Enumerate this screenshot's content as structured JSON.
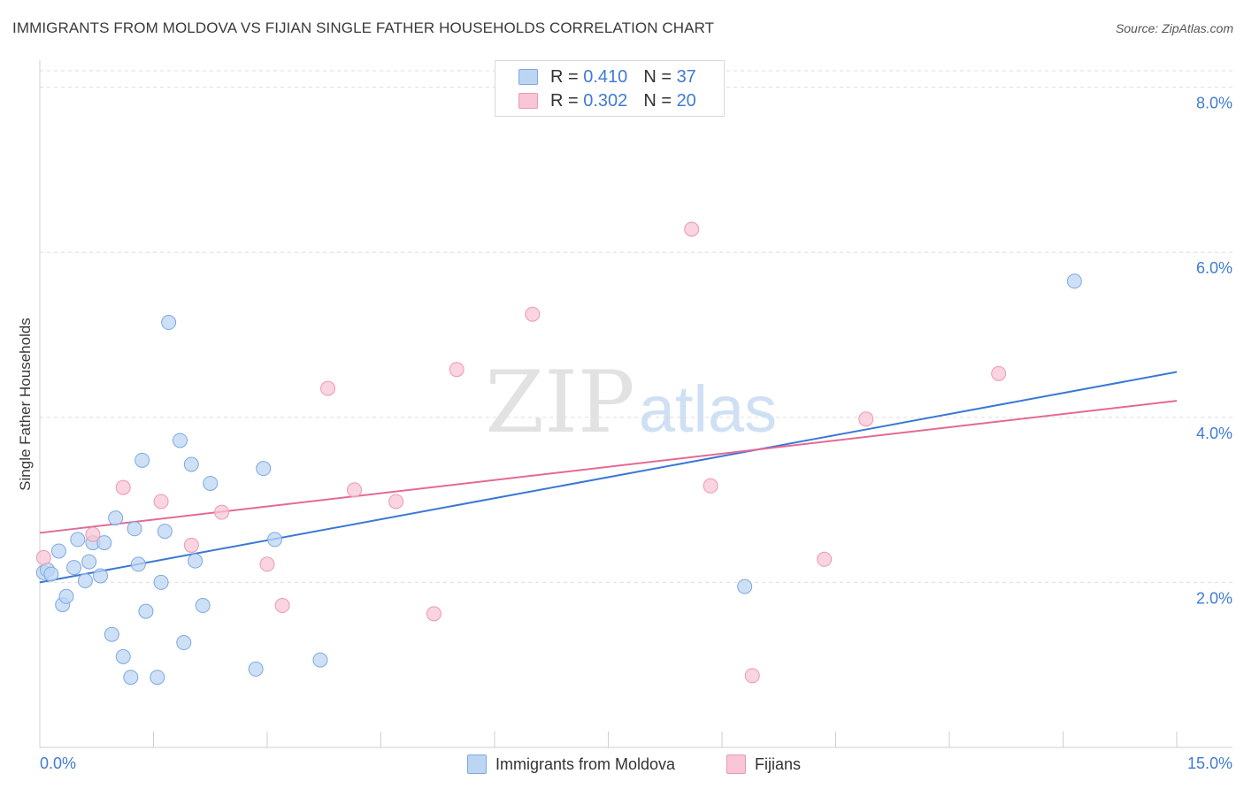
{
  "header": {
    "title": "IMMIGRANTS FROM MOLDOVA VS FIJIAN SINGLE FATHER HOUSEHOLDS CORRELATION CHART",
    "source": "Source: ZipAtlas.com"
  },
  "legend_top": {
    "rows": [
      {
        "r_label": "R =",
        "r_value": "0.410",
        "n_label": "N =",
        "n_value": "37"
      },
      {
        "r_label": "R =",
        "r_value": "0.302",
        "n_label": "N =",
        "n_value": "20"
      }
    ]
  },
  "legend_bottom": {
    "items": [
      "Immigrants from Moldova",
      "Fijians"
    ]
  },
  "watermark": {
    "zip": "ZIP",
    "atlas": "atlas"
  },
  "colors": {
    "blue_fill": "#bcd5f3",
    "blue_stroke": "#7fa8e0",
    "blue_line": "#3a78d4",
    "pink_fill": "#f8c6d6",
    "pink_stroke": "#ec98b4",
    "pink_line": "#e36a95",
    "axis_text": "#3f7bd6"
  },
  "chart_data": {
    "type": "scatter",
    "title": "IMMIGRANTS FROM MOLDOVA VS FIJIAN SINGLE FATHER HOUSEHOLDS CORRELATION CHART",
    "xlabel": "",
    "ylabel": "Single Father Households",
    "xlim": [
      0,
      15
    ],
    "ylim": [
      0,
      8.2
    ],
    "x_tick_labels": [
      "0.0%",
      "15.0%"
    ],
    "y_ticks": [
      2,
      4,
      6,
      8
    ],
    "y_tick_labels": [
      "2.0%",
      "4.0%",
      "6.0%",
      "8.0%"
    ],
    "grid": true,
    "series": [
      {
        "name": "Immigrants from Moldova",
        "points": [
          [
            0.05,
            2.12
          ],
          [
            0.1,
            2.15
          ],
          [
            0.15,
            2.1
          ],
          [
            0.25,
            2.38
          ],
          [
            0.3,
            1.73
          ],
          [
            0.35,
            1.83
          ],
          [
            0.45,
            2.18
          ],
          [
            0.5,
            2.52
          ],
          [
            0.6,
            2.02
          ],
          [
            0.65,
            2.25
          ],
          [
            0.7,
            2.48
          ],
          [
            0.8,
            2.08
          ],
          [
            0.85,
            2.48
          ],
          [
            0.95,
            1.37
          ],
          [
            1.0,
            2.78
          ],
          [
            1.1,
            1.1
          ],
          [
            1.2,
            0.85
          ],
          [
            1.25,
            2.65
          ],
          [
            1.3,
            2.22
          ],
          [
            1.35,
            3.48
          ],
          [
            1.4,
            1.65
          ],
          [
            1.55,
            0.85
          ],
          [
            1.6,
            2.0
          ],
          [
            1.65,
            2.62
          ],
          [
            1.7,
            5.15
          ],
          [
            1.85,
            3.72
          ],
          [
            1.9,
            1.27
          ],
          [
            2.0,
            3.43
          ],
          [
            2.05,
            2.26
          ],
          [
            2.15,
            1.72
          ],
          [
            2.25,
            3.2
          ],
          [
            2.85,
            0.95
          ],
          [
            2.95,
            3.38
          ],
          [
            3.1,
            2.52
          ],
          [
            3.7,
            1.06
          ],
          [
            9.3,
            1.95
          ],
          [
            13.65,
            5.65
          ]
        ],
        "trend": {
          "x": [
            0,
            15
          ],
          "y": [
            2.0,
            4.55
          ]
        }
      },
      {
        "name": "Fijians",
        "points": [
          [
            0.05,
            2.3
          ],
          [
            0.7,
            2.58
          ],
          [
            1.1,
            3.15
          ],
          [
            1.6,
            2.98
          ],
          [
            2.0,
            2.45
          ],
          [
            2.4,
            2.85
          ],
          [
            3.0,
            2.22
          ],
          [
            3.2,
            1.72
          ],
          [
            3.8,
            4.35
          ],
          [
            4.15,
            3.12
          ],
          [
            4.7,
            2.98
          ],
          [
            5.2,
            1.62
          ],
          [
            5.5,
            4.58
          ],
          [
            6.5,
            5.25
          ],
          [
            8.6,
            6.28
          ],
          [
            8.85,
            3.17
          ],
          [
            9.4,
            0.87
          ],
          [
            10.35,
            2.28
          ],
          [
            10.9,
            3.98
          ],
          [
            12.65,
            4.53
          ]
        ],
        "trend": {
          "x": [
            0,
            15
          ],
          "y": [
            2.6,
            4.2
          ]
        }
      }
    ]
  }
}
